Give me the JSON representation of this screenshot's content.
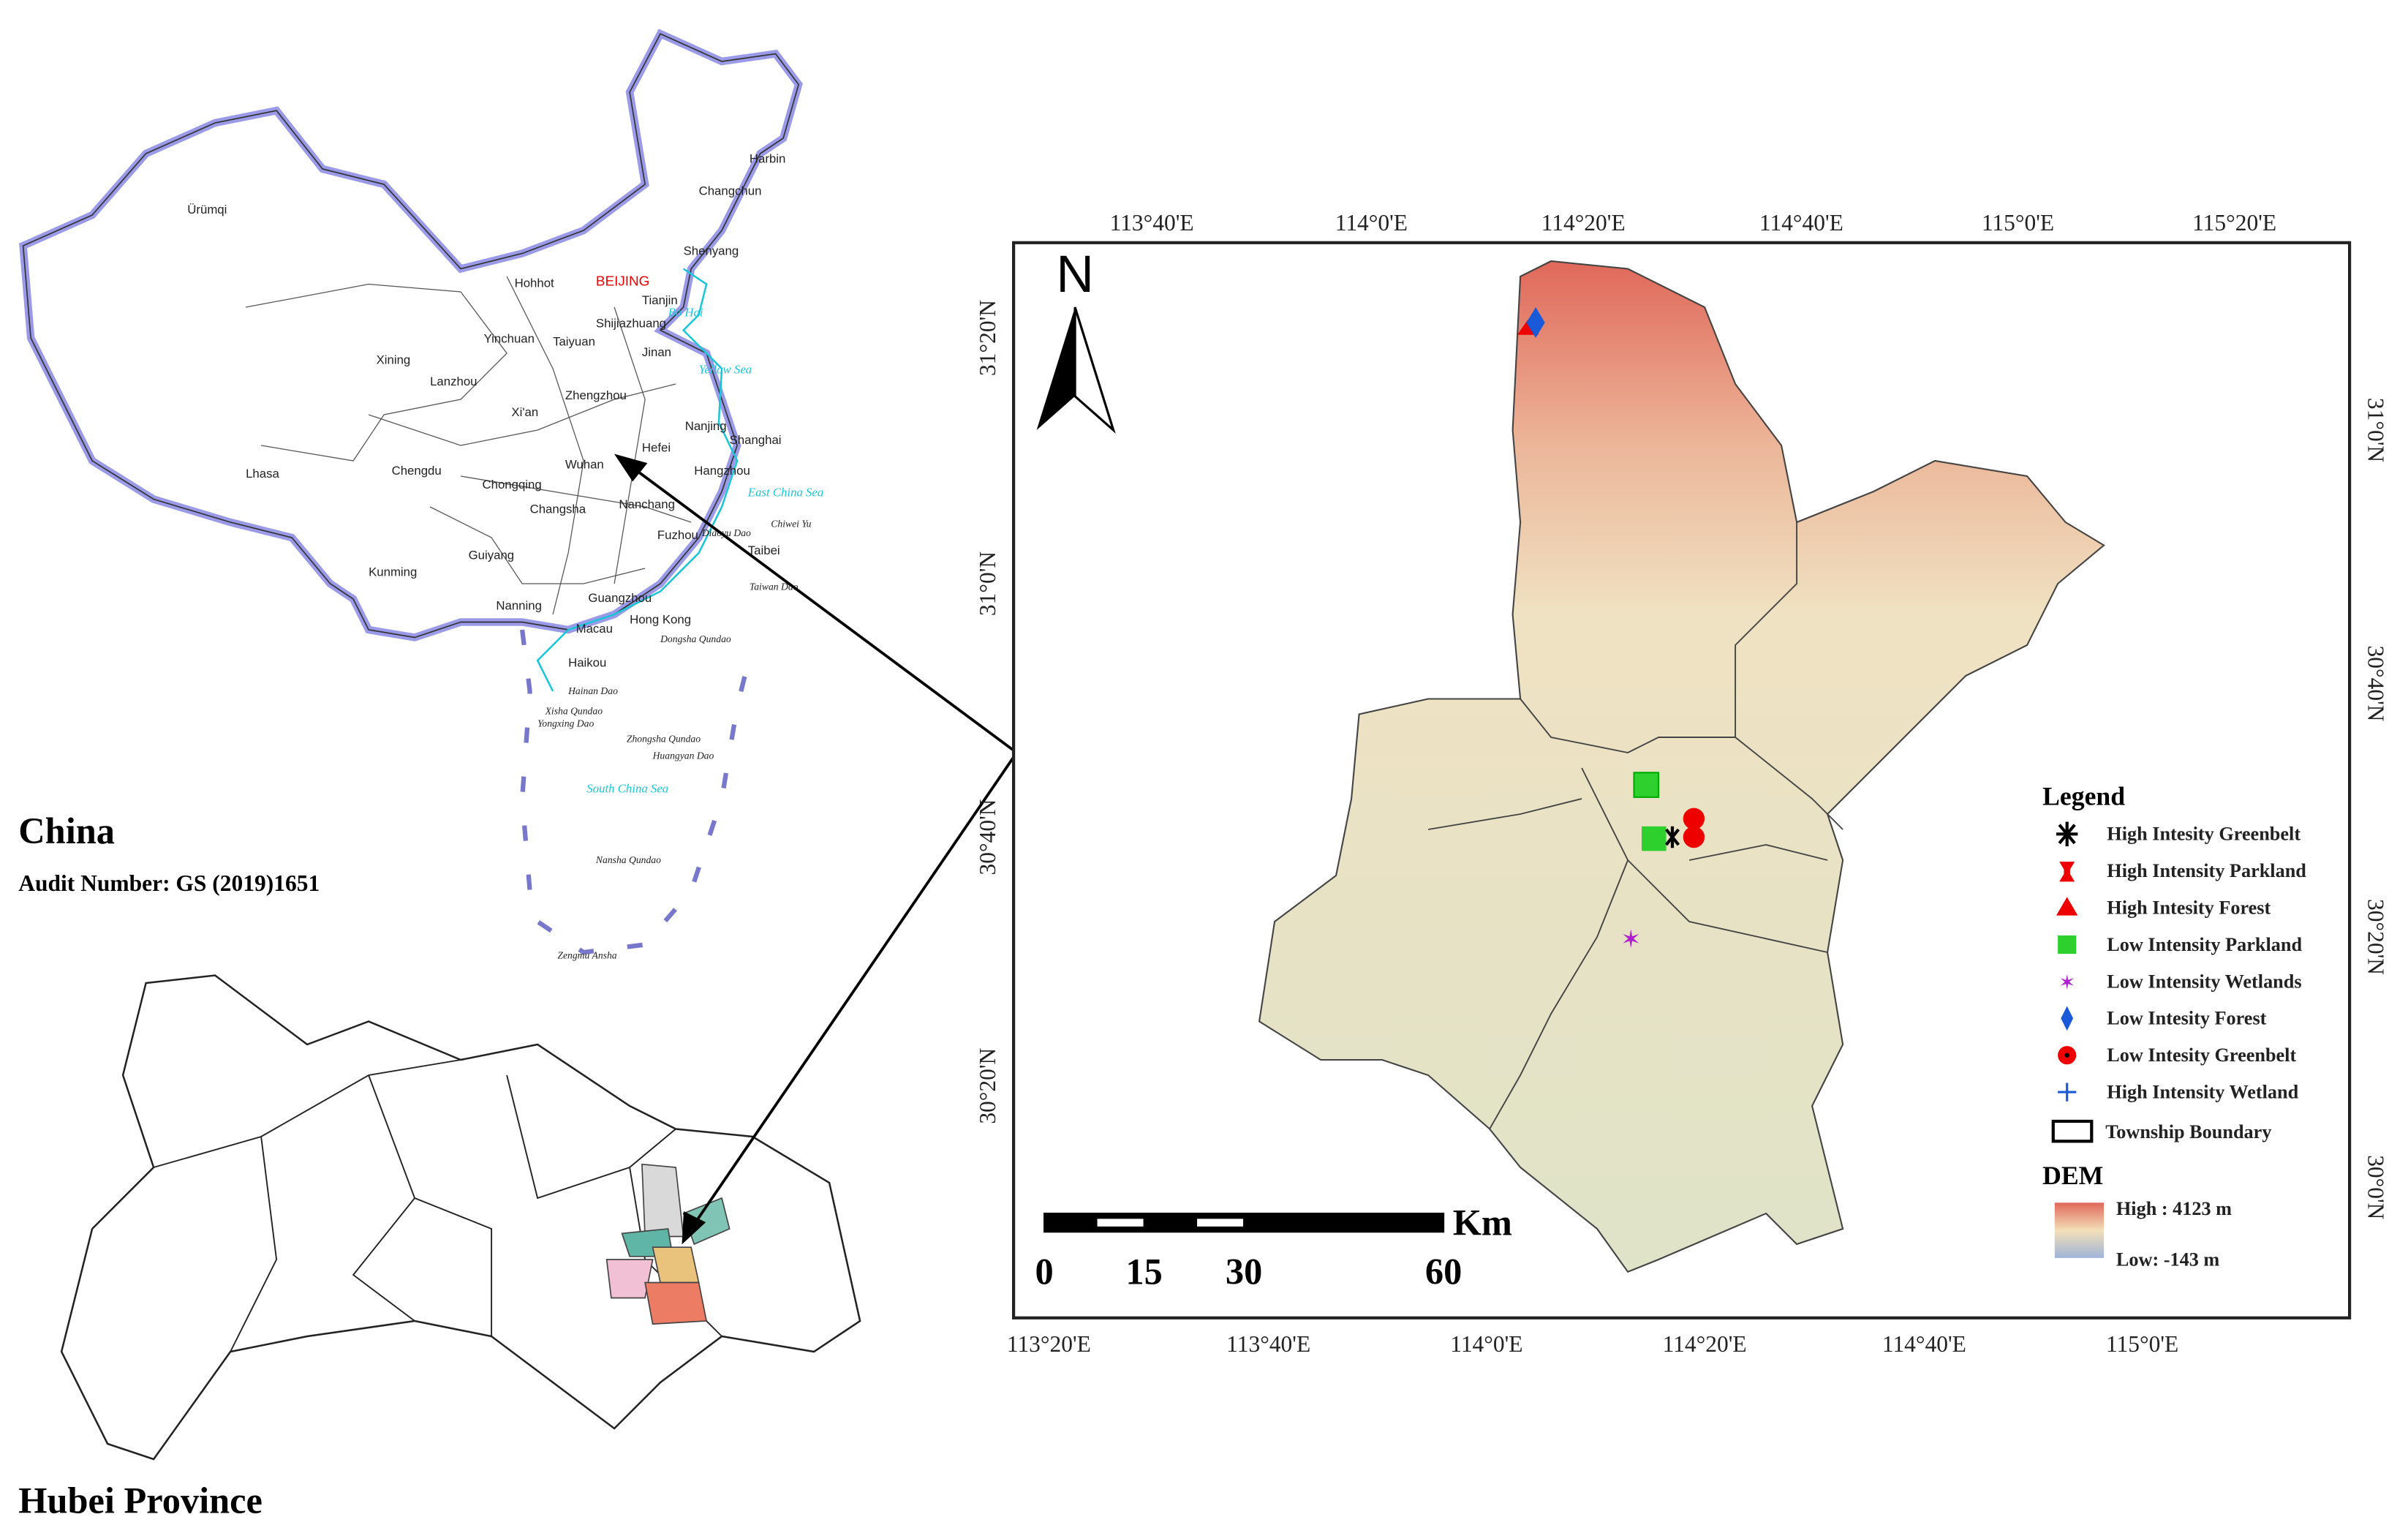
{
  "china_map": {
    "title": "China",
    "audit": "Audit Number: GS (2019)1651",
    "labels": [
      "Harbin",
      "Changchun",
      "Shenyang",
      "Ürümqi",
      "Hohhot",
      "BEIJING",
      "Tianjin",
      "Bo Hai",
      "Shijiazhuang",
      "Yinchuan",
      "Taiyuan",
      "Jinan",
      "Yellow Sea",
      "Xining",
      "Lanzhou",
      "Zhengzhou",
      "Xi'an",
      "Nanjing",
      "Shanghai",
      "Hefei",
      "Wuhan",
      "Hangzhou",
      "Lhasa",
      "Chengdu",
      "Chongqing",
      "East China Sea",
      "Changsha",
      "Nanchang",
      "Fuzhou",
      "Diaoyu Dao",
      "Chiwei Yu",
      "Taibei",
      "Guiyang",
      "Kunming",
      "Taiwan Dao",
      "Nanning",
      "Guangzhou",
      "Macau",
      "Hong Kong",
      "Dongsha Qundao",
      "Haikou",
      "Hainan Dao",
      "Xisha Qundao",
      "Yongxing Dao",
      "Zhongsha Qundao",
      "Huangyan Dao",
      "South China Sea",
      "Nansha Qundao",
      "Zengmu Ansha"
    ]
  },
  "hubei_map": {
    "title": "Hubei Province"
  },
  "main_map": {
    "north": "N",
    "top_lon_labels": [
      "113°40'E",
      "114°0'E",
      "114°20'E",
      "114°40'E",
      "115°0'E",
      "115°20'E"
    ],
    "bottom_lon_labels": [
      "113°20'E",
      "113°40'E",
      "114°0'E",
      "114°20'E",
      "114°40'E",
      "115°0'E"
    ],
    "left_lat_labels": [
      "31°20'N",
      "31°0'N",
      "30°40'N",
      "30°20'N"
    ],
    "right_lat_labels": [
      "31°0'N",
      "30°40'N",
      "30°20'N",
      "30°0'N"
    ],
    "scale_bar": {
      "unit": "Km",
      "labels": [
        "0",
        "15",
        "30",
        "60"
      ]
    },
    "legend": {
      "title": "Legend",
      "items": [
        "High Intesity Greenbelt",
        "High Intensity Parkland",
        "High Intesity Forest",
        "Low Intensity  Parkland",
        "Low Intensity  Wetlands",
        "Low Intesity Forest",
        "Low Intesity Greenbelt",
        "High Intensity Wetland",
        "Township Boundary"
      ]
    },
    "dem": {
      "title": "DEM",
      "high": "High : 4123 m",
      "low": "Low: -143 m"
    }
  }
}
